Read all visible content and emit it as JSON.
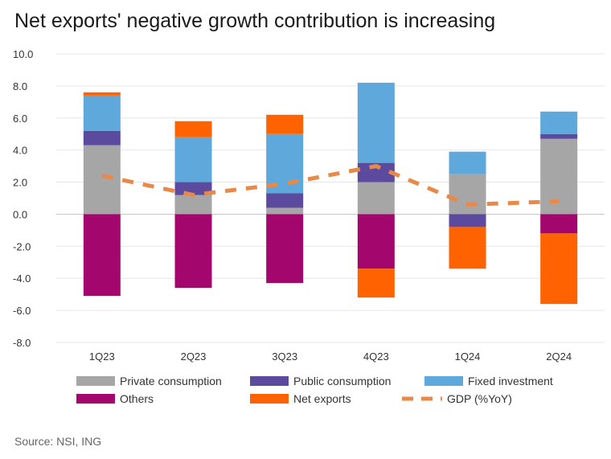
{
  "title": "Net exports' negative growth contribution is increasing",
  "source": "Source: NSI, ING",
  "colors": {
    "private": "#a6a6a6",
    "public": "#5b4a9e",
    "fixed": "#5ea8dc",
    "others": "#a3066c",
    "net": "#ff6200",
    "gdp": "#e8894a"
  },
  "chart_data": {
    "type": "bar",
    "stacked": true,
    "categories": [
      "1Q23",
      "2Q23",
      "3Q23",
      "4Q23",
      "1Q24",
      "2Q24"
    ],
    "ylim": [
      -8.0,
      10.0
    ],
    "yticks": [
      "10.0",
      "8.0",
      "6.0",
      "4.0",
      "2.0",
      "0.0",
      "-2.0",
      "-4.0",
      "-6.0",
      "-8.0"
    ],
    "grid": true,
    "legend_position": "bottom",
    "series": [
      {
        "key": "private",
        "name": "Private consumption",
        "values": [
          4.3,
          1.2,
          0.4,
          2.0,
          2.5,
          4.7
        ]
      },
      {
        "key": "public",
        "name": "Public consumption",
        "values": [
          0.9,
          0.8,
          0.9,
          1.2,
          -0.8,
          0.3
        ]
      },
      {
        "key": "fixed",
        "name": "Fixed investment",
        "values": [
          2.2,
          2.8,
          3.7,
          5.0,
          1.4,
          1.4
        ]
      },
      {
        "key": "others",
        "name": "Others",
        "values": [
          -5.1,
          -4.6,
          -4.3,
          -3.4,
          0.0,
          -1.2
        ]
      },
      {
        "key": "net",
        "name": "Net exports",
        "values": [
          0.2,
          1.0,
          1.2,
          -1.8,
          -2.6,
          -4.4
        ]
      }
    ],
    "line": {
      "key": "gdp",
      "name": "GDP (%YoY)",
      "values": [
        2.4,
        1.2,
        1.9,
        3.0,
        0.6,
        0.8
      ]
    }
  }
}
